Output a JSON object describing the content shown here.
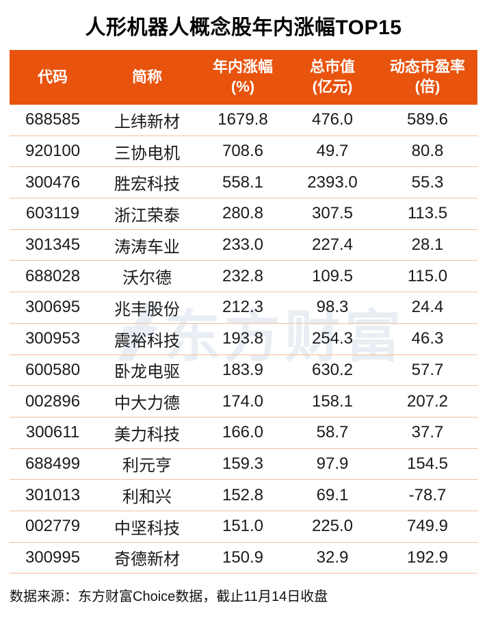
{
  "title": "人形机器人概念股年内涨幅TOP15",
  "chart_data": {
    "type": "table",
    "title": "人形机器人概念股年内涨幅TOP15",
    "columns": [
      {
        "line1": "代码",
        "line2": ""
      },
      {
        "line1": "简称",
        "line2": ""
      },
      {
        "line1": "年内涨幅",
        "line2": "(%)"
      },
      {
        "line1": "总市值",
        "line2": "(亿元)"
      },
      {
        "line1": "动态市盈率",
        "line2": "(倍)"
      }
    ],
    "rows": [
      [
        "688585",
        "上纬新材",
        "1679.8",
        "476.0",
        "589.6"
      ],
      [
        "920100",
        "三协电机",
        "708.6",
        "49.7",
        "80.8"
      ],
      [
        "300476",
        "胜宏科技",
        "558.1",
        "2393.0",
        "55.3"
      ],
      [
        "603119",
        "浙江荣泰",
        "280.8",
        "307.5",
        "113.5"
      ],
      [
        "301345",
        "涛涛车业",
        "233.0",
        "227.4",
        "28.1"
      ],
      [
        "688028",
        "沃尔德",
        "232.8",
        "109.5",
        "115.0"
      ],
      [
        "300695",
        "兆丰股份",
        "212.3",
        "98.3",
        "24.4"
      ],
      [
        "300953",
        "震裕科技",
        "193.8",
        "254.3",
        "46.3"
      ],
      [
        "600580",
        "卧龙电驱",
        "183.9",
        "630.2",
        "57.7"
      ],
      [
        "002896",
        "中大力德",
        "174.0",
        "158.1",
        "207.2"
      ],
      [
        "300611",
        "美力科技",
        "166.0",
        "58.7",
        "37.7"
      ],
      [
        "688499",
        "利元亨",
        "159.3",
        "97.9",
        "154.5"
      ],
      [
        "301013",
        "利和兴",
        "152.8",
        "69.1",
        "-78.7"
      ],
      [
        "002779",
        "中坚科技",
        "151.0",
        "225.0",
        "749.9"
      ],
      [
        "300995",
        "奇德新材",
        "150.9",
        "32.9",
        "192.9"
      ]
    ]
  },
  "watermark": {
    "text": "东方财富",
    "icon": "eastmoney-logo"
  },
  "footer": "数据来源：东方财富Choice数据，截止11月14日收盘",
  "colors": {
    "header_bg": "#e8530e",
    "row_divider": "#f3bf9c",
    "watermark": "#e9eef4",
    "title_text": "#000000",
    "body_text": "#1a1a1a"
  }
}
